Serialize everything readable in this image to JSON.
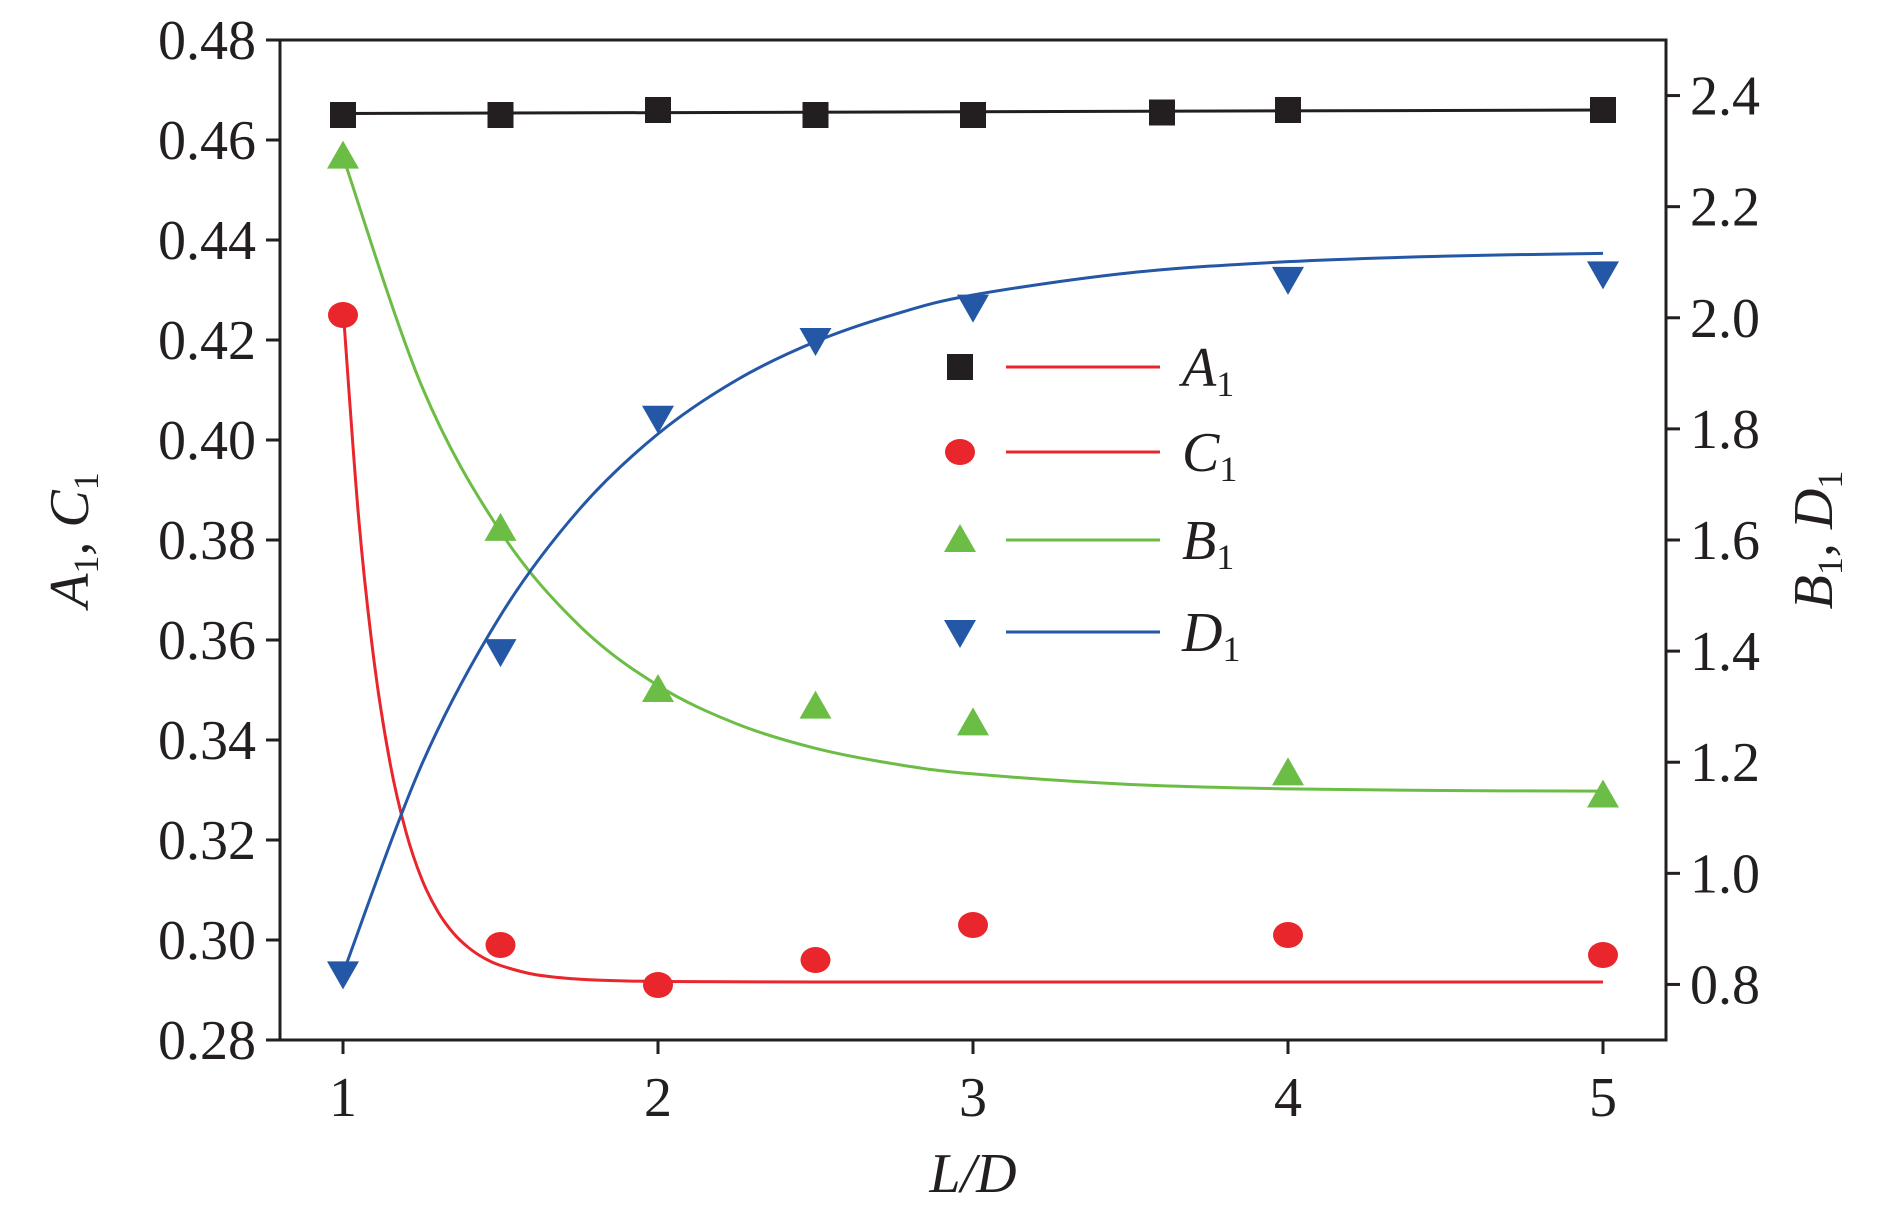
{
  "chart_data": {
    "type": "scatter",
    "x_axis": {
      "label": "L/D",
      "range": [
        0.8,
        5.2
      ],
      "ticks": [
        1,
        2,
        3,
        4,
        5
      ],
      "tick_labels": [
        "1",
        "2",
        "3",
        "4",
        "5"
      ]
    },
    "y_left": {
      "label_main": [
        "A",
        ", C"
      ],
      "label_sub": [
        "1",
        "1"
      ],
      "range": [
        0.28,
        0.48
      ],
      "ticks": [
        0.28,
        0.3,
        0.32,
        0.34,
        0.36,
        0.38,
        0.4,
        0.42,
        0.44,
        0.46,
        0.48
      ],
      "tick_labels": [
        "0.28",
        "0.30",
        "0.32",
        "0.34",
        "0.36",
        "0.38",
        "0.40",
        "0.42",
        "0.44",
        "0.46",
        "0.48"
      ]
    },
    "y_right": {
      "label_main": [
        "B",
        ", D"
      ],
      "label_sub": [
        "1",
        "1"
      ],
      "range": [
        0.7,
        2.5
      ],
      "ticks": [
        0.8,
        1.0,
        1.2,
        1.4,
        1.6,
        1.8,
        2.0,
        2.2,
        2.4
      ],
      "tick_labels": [
        "0.8",
        "1.0",
        "1.2",
        "1.4",
        "1.6",
        "1.8",
        "2.0",
        "2.2",
        "2.4"
      ]
    },
    "legend_placement": "center",
    "grid": false,
    "series": [
      {
        "name": "A",
        "name_sub": "1",
        "axis": "left",
        "marker": "square",
        "marker_color": "#231f20",
        "line_color": "#231f20",
        "legend_line_color": "#e8262b",
        "x": [
          1,
          1.5,
          2,
          2.5,
          3,
          3.6,
          4,
          5
        ],
        "y": [
          0.465,
          0.465,
          0.466,
          0.465,
          0.465,
          0.4655,
          0.466,
          0.466
        ],
        "fit_x": [
          1,
          5
        ],
        "fit_y": [
          0.4653,
          0.466
        ]
      },
      {
        "name": "C",
        "name_sub": "1",
        "axis": "left",
        "marker": "circle",
        "marker_color": "#e8262b",
        "line_color": "#e8262b",
        "legend_line_color": "#e8262b",
        "x": [
          1,
          1.5,
          2,
          2.5,
          3,
          4,
          5
        ],
        "y": [
          0.425,
          0.299,
          0.291,
          0.296,
          0.303,
          0.301,
          0.297
        ],
        "fit_x": [
          1,
          1.05,
          1.1,
          1.15,
          1.2,
          1.25,
          1.3,
          1.35,
          1.4,
          1.45,
          1.5,
          1.6,
          1.7,
          1.8,
          2,
          2.5,
          3,
          4,
          5
        ],
        "fit_y": [
          0.4265,
          0.3842,
          0.3551,
          0.3352,
          0.3216,
          0.3122,
          0.3058,
          0.3014,
          0.2984,
          0.2963,
          0.2949,
          0.2932,
          0.2924,
          0.292,
          0.2917,
          0.2916,
          0.2916,
          0.2916,
          0.2916
        ]
      },
      {
        "name": "B",
        "name_sub": "1",
        "axis": "right",
        "marker": "triangle-up",
        "marker_color": "#6cbd45",
        "line_color": "#6cbd45",
        "legend_line_color": "#6cbd45",
        "x": [
          1,
          1.5,
          2,
          2.5,
          3,
          4,
          5
        ],
        "y": [
          2.29,
          1.62,
          1.33,
          1.3,
          1.27,
          1.18,
          1.14
        ],
        "fit_x": [
          1,
          1.25,
          1.5,
          1.75,
          2,
          2.25,
          2.5,
          2.75,
          3,
          3.5,
          4,
          4.5,
          5
        ],
        "fit_y": [
          2.29,
          1.877,
          1.615,
          1.446,
          1.338,
          1.269,
          1.225,
          1.197,
          1.179,
          1.16,
          1.152,
          1.149,
          1.148
        ]
      },
      {
        "name": "D",
        "name_sub": "1",
        "axis": "right",
        "marker": "triangle-down",
        "marker_color": "#2457a6",
        "line_color": "#2457a6",
        "legend_line_color": "#2457a6",
        "x": [
          1,
          1.5,
          2,
          2.5,
          3,
          4,
          5
        ],
        "y": [
          0.82,
          1.4,
          1.82,
          1.96,
          2.02,
          2.07,
          2.08
        ],
        "fit_x": [
          1,
          1.25,
          1.5,
          1.75,
          2,
          2.25,
          2.5,
          2.75,
          3,
          3.5,
          4,
          4.5,
          5
        ],
        "fit_y": [
          0.82,
          1.196,
          1.464,
          1.655,
          1.791,
          1.888,
          1.957,
          2.006,
          2.041,
          2.081,
          2.101,
          2.111,
          2.116
        ]
      }
    ]
  }
}
